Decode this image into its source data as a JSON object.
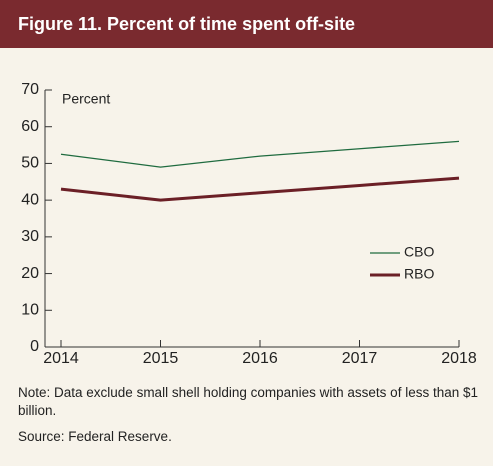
{
  "chart_data": {
    "type": "line",
    "title": "Figure 11. Percent of time spent off-site",
    "y_label": "Percent",
    "categories": [
      "2014",
      "2015",
      "2016",
      "2017",
      "2018"
    ],
    "series": [
      {
        "name": "CBO",
        "color": "#1f6b3f",
        "width": 1.3,
        "values": [
          52.5,
          49,
          52,
          54,
          56
        ]
      },
      {
        "name": "RBO",
        "color": "#6b1f26",
        "width": 3,
        "values": [
          43,
          40,
          42,
          44,
          46
        ]
      }
    ],
    "ylim": [
      0,
      70
    ],
    "yticks": [
      0,
      10,
      20,
      30,
      40,
      50,
      60,
      70
    ],
    "legend": "right",
    "note": "Note: Data exclude small shell holding companies with assets of less than $1 billion.",
    "source": "Source: Federal Reserve."
  }
}
